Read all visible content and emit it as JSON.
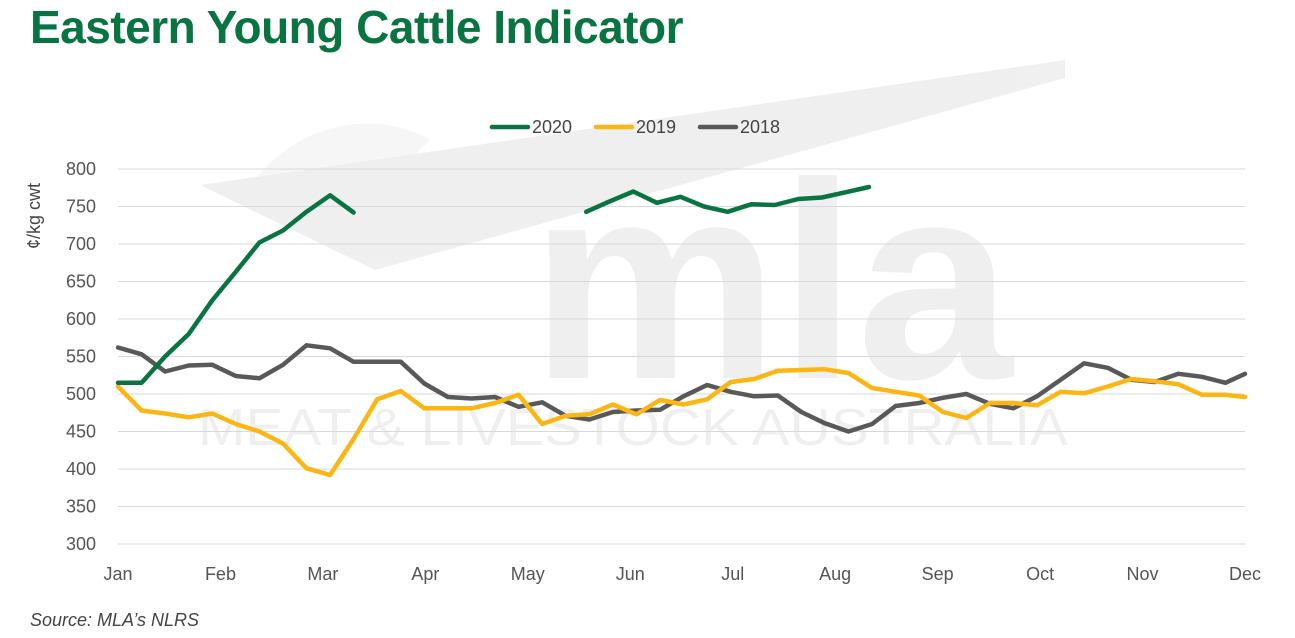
{
  "title": "Eastern Young Cattle Indicator",
  "source": "Source: MLA’s NLRS",
  "watermark": {
    "logo_text": "mla",
    "subtext": "MEAT & LIVESTOCK AUSTRALIA"
  },
  "colors": {
    "title": "#087442",
    "2020": "#087442",
    "2019": "#FBB614",
    "2018": "#595959",
    "grid": "#D9D9D9"
  },
  "chart_data": {
    "type": "line",
    "ylabel": "¢/kg cwt",
    "ylim": [
      300,
      800
    ],
    "yticks": [
      "300",
      "350",
      "400",
      "450",
      "500",
      "550",
      "600",
      "650",
      "700",
      "750",
      "800"
    ],
    "xlabel": "",
    "x_tick_labels": [
      "Jan",
      "Feb",
      "Mar",
      "Apr",
      "May",
      "Jun",
      "Jul",
      "Aug",
      "Sep",
      "Oct",
      "Nov",
      "Dec"
    ],
    "xlim": [
      0,
      11
    ],
    "grid": true,
    "legend_position": "top",
    "series": [
      {
        "name": "2020",
        "color": "#087442",
        "segments": [
          [
            [
              0,
              515
            ],
            [
              0.23,
              515
            ],
            [
              0.46,
              550
            ],
            [
              0.69,
              580
            ],
            [
              0.92,
              625
            ],
            [
              1.15,
              663
            ],
            [
              1.38,
              702
            ],
            [
              1.61,
              718
            ],
            [
              1.84,
              743
            ],
            [
              2.07,
              765
            ],
            [
              2.3,
              742
            ]
          ],
          [
            [
              4.57,
              743
            ],
            [
              4.8,
              757
            ],
            [
              5.03,
              770
            ],
            [
              5.26,
              755
            ],
            [
              5.49,
              763
            ],
            [
              5.72,
              750
            ],
            [
              5.95,
              743
            ],
            [
              6.18,
              753
            ],
            [
              6.41,
              752
            ],
            [
              6.64,
              760
            ],
            [
              6.87,
              762
            ],
            [
              7.1,
              769
            ],
            [
              7.33,
              776
            ]
          ]
        ]
      },
      {
        "name": "2019",
        "color": "#FBB614",
        "segments": [
          [
            [
              0,
              510
            ],
            [
              0.23,
              478
            ],
            [
              0.46,
              474
            ],
            [
              0.69,
              469
            ],
            [
              0.92,
              474
            ],
            [
              1.15,
              460
            ],
            [
              1.38,
              450
            ],
            [
              1.61,
              434
            ],
            [
              1.84,
              401
            ],
            [
              2.07,
              392
            ],
            [
              2.3,
              440
            ],
            [
              2.53,
              493
            ],
            [
              2.76,
              504
            ],
            [
              2.99,
              481
            ],
            [
              3.22,
              481
            ],
            [
              3.45,
              481
            ],
            [
              3.68,
              488
            ],
            [
              3.91,
              499
            ],
            [
              4.14,
              460
            ],
            [
              4.37,
              471
            ],
            [
              4.6,
              473
            ],
            [
              4.83,
              486
            ],
            [
              5.06,
              473
            ],
            [
              5.29,
              492
            ],
            [
              5.52,
              486
            ],
            [
              5.75,
              493
            ],
            [
              5.98,
              516
            ],
            [
              6.21,
              520
            ],
            [
              6.44,
              531
            ],
            [
              6.67,
              532
            ],
            [
              6.9,
              533
            ],
            [
              7.13,
              528
            ],
            [
              7.36,
              508
            ],
            [
              7.59,
              503
            ],
            [
              7.82,
              498
            ],
            [
              8.05,
              476
            ],
            [
              8.28,
              468
            ],
            [
              8.51,
              488
            ],
            [
              8.74,
              488
            ],
            [
              8.97,
              485
            ],
            [
              9.2,
              503
            ],
            [
              9.43,
              501
            ],
            [
              9.66,
              510
            ],
            [
              9.89,
              520
            ],
            [
              10.12,
              517
            ],
            [
              10.35,
              513
            ],
            [
              10.58,
              499
            ],
            [
              10.81,
              499
            ],
            [
              11.0,
              496
            ]
          ]
        ]
      },
      {
        "name": "2018",
        "color": "#595959",
        "segments": [
          [
            [
              0,
              562
            ],
            [
              0.23,
              553
            ],
            [
              0.46,
              530
            ],
            [
              0.69,
              538
            ],
            [
              0.92,
              539
            ],
            [
              1.15,
              524
            ],
            [
              1.38,
              521
            ],
            [
              1.61,
              539
            ],
            [
              1.84,
              565
            ],
            [
              2.07,
              561
            ],
            [
              2.3,
              543
            ],
            [
              2.53,
              543
            ],
            [
              2.76,
              543
            ],
            [
              2.99,
              514
            ],
            [
              3.22,
              496
            ],
            [
              3.45,
              494
            ],
            [
              3.68,
              496
            ],
            [
              3.91,
              483
            ],
            [
              4.14,
              489
            ],
            [
              4.37,
              471
            ],
            [
              4.6,
              466
            ],
            [
              4.83,
              476
            ],
            [
              5.06,
              478
            ],
            [
              5.29,
              479
            ],
            [
              5.52,
              497
            ],
            [
              5.75,
              512
            ],
            [
              5.98,
              503
            ],
            [
              6.21,
              497
            ],
            [
              6.44,
              498
            ],
            [
              6.67,
              476
            ],
            [
              6.9,
              461
            ],
            [
              7.13,
              450
            ],
            [
              7.36,
              460
            ],
            [
              7.59,
              484
            ],
            [
              7.82,
              488
            ],
            [
              8.05,
              495
            ],
            [
              8.28,
              500
            ],
            [
              8.51,
              487
            ],
            [
              8.74,
              481
            ],
            [
              8.97,
              497
            ],
            [
              9.2,
              519
            ],
            [
              9.43,
              541
            ],
            [
              9.66,
              535
            ],
            [
              9.89,
              519
            ],
            [
              10.12,
              516
            ],
            [
              10.35,
              527
            ],
            [
              10.58,
              523
            ],
            [
              10.81,
              515
            ],
            [
              11.0,
              527
            ]
          ]
        ]
      }
    ]
  }
}
